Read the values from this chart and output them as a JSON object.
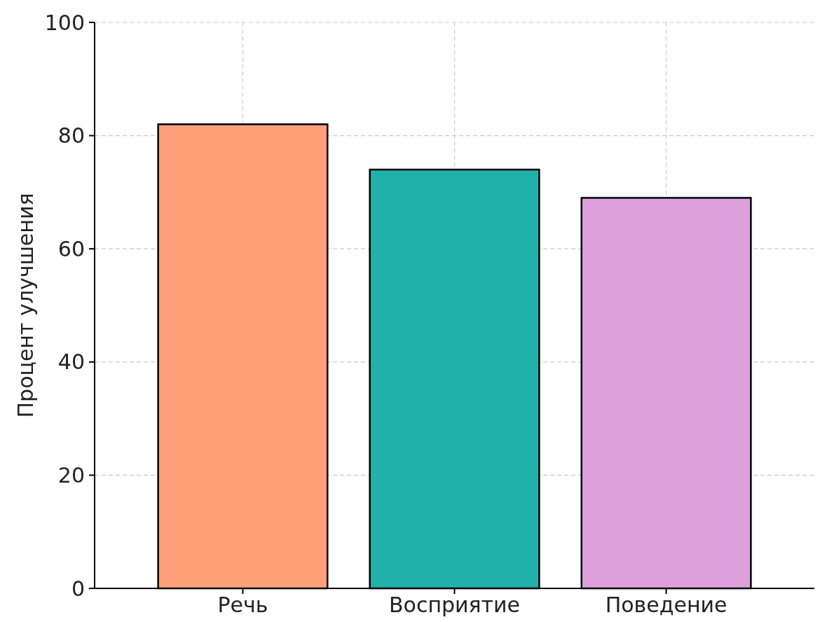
{
  "chart_data": {
    "type": "bar",
    "ylabel": "Процент улучшения",
    "categories": [
      "Речь",
      "Восприятие",
      "Поведение"
    ],
    "values": [
      82,
      74,
      69
    ],
    "colors": [
      "#ffa07a",
      "#20b2aa",
      "#dda0dd"
    ],
    "ylim": [
      0,
      100
    ],
    "yticks": [
      0,
      20,
      40,
      60,
      80,
      100
    ],
    "grid": true
  }
}
